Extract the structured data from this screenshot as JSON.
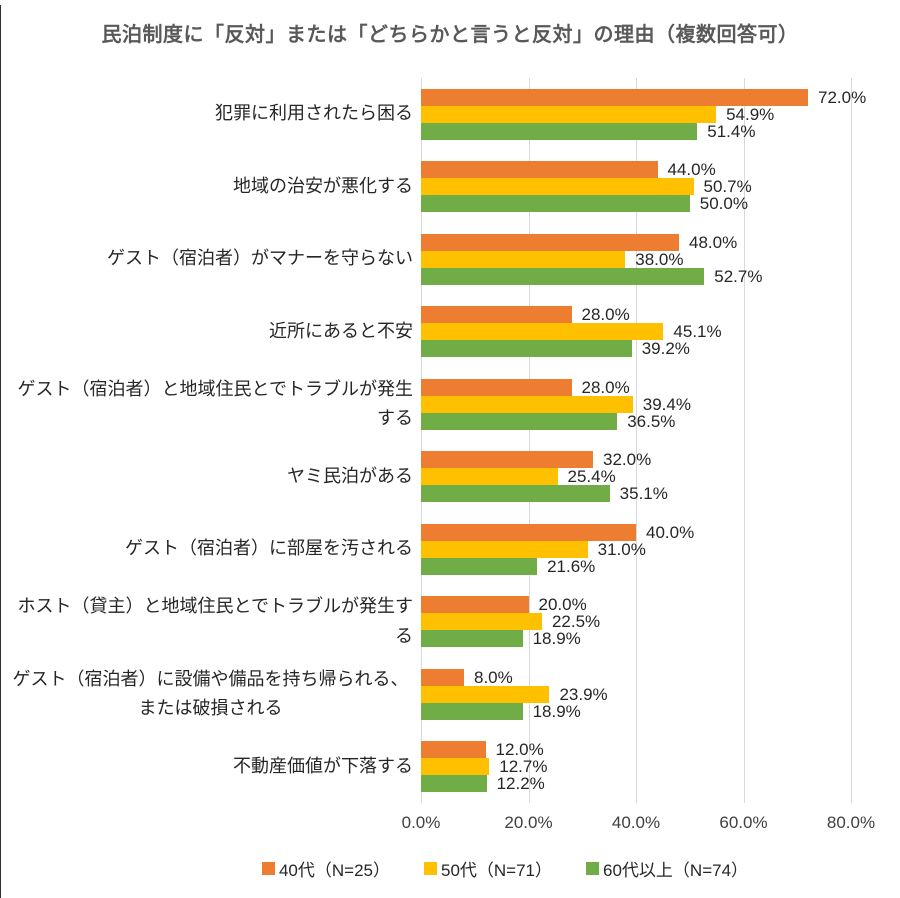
{
  "title": "民泊制度に「反対」または「どちらかと言うと反対」の理由（複数回答可）",
  "chart_data": {
    "type": "bar",
    "orientation": "horizontal",
    "title": "民泊制度に「反対」または「どちらかと言うと反対」の理由（複数回答可）",
    "categories": [
      "犯罪に利用されたら困る",
      "地域の治安が悪化する",
      "ゲスト（宿泊者）がマナーを守らない",
      "近所にあると不安",
      "ゲスト（宿泊者）と地域住民とでトラブルが発生する",
      "ヤミ民泊がある",
      "ゲスト（宿泊者）に部屋を汚される",
      "ホスト（貸主）と地域住民とでトラブルが発生する",
      "ゲスト（宿泊者）に設備や備品を持ち帰られる、\nまたは破損される",
      "不動産価値が下落する"
    ],
    "series": [
      {
        "name": "40代（N=25）",
        "color": "#ED7D31",
        "values": [
          72.0,
          44.0,
          48.0,
          28.0,
          28.0,
          32.0,
          40.0,
          20.0,
          8.0,
          12.0
        ]
      },
      {
        "name": "50代（N=71）",
        "color": "#FFC000",
        "values": [
          54.9,
          50.7,
          38.0,
          45.1,
          39.4,
          25.4,
          31.0,
          22.5,
          23.9,
          12.7
        ]
      },
      {
        "name": "60代以上（N=74）",
        "color": "#70AD47",
        "values": [
          51.4,
          50.0,
          52.7,
          39.2,
          36.5,
          35.1,
          21.6,
          18.9,
          18.9,
          12.2
        ]
      }
    ],
    "data_labels": true,
    "data_label_format": "0.0%",
    "xlabel": "",
    "ylabel": "",
    "x_axis": {
      "ticks": [
        "0.0%",
        "20.0%",
        "40.0%",
        "60.0%",
        "80.0%"
      ],
      "min": 0,
      "max": 80,
      "step": 20
    },
    "grid": true,
    "gridline_color": "#D9D9D9",
    "legend_position": "bottom",
    "title_color": "#595959",
    "background_color": "#FFFFFF"
  }
}
